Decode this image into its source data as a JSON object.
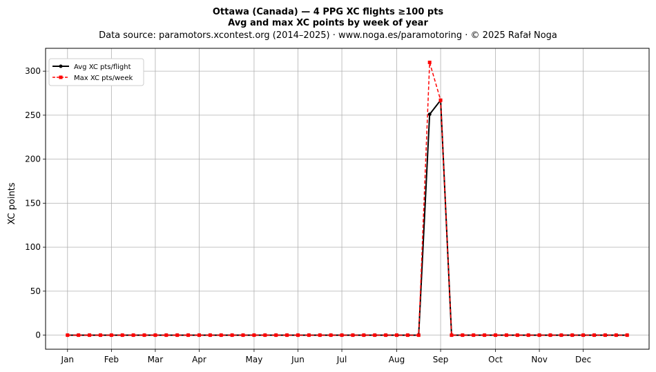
{
  "chart_data": {
    "type": "line",
    "title": "Ottawa (Canada)  —  4 PPG XC flights ≥100 pts",
    "subtitle": "Avg and max XC points by week of year",
    "source_note": "Data source: paramotors.xcontest.org (2014–2025)  ·  www.noga.es/paramotoring  ·  © 2025 Rafał Noga",
    "xlabel": "",
    "ylabel": "XC points",
    "xlim": [
      -1,
      54
    ],
    "ylim": [
      -16,
      326
    ],
    "yticks": [
      0,
      50,
      100,
      150,
      200,
      250,
      300
    ],
    "month_ticks": [
      {
        "label": "Jan",
        "week": 1
      },
      {
        "label": "Feb",
        "week": 5
      },
      {
        "label": "Mar",
        "week": 9
      },
      {
        "label": "Apr",
        "week": 13
      },
      {
        "label": "May",
        "week": 18
      },
      {
        "label": "Jun",
        "week": 22
      },
      {
        "label": "Jul",
        "week": 26
      },
      {
        "label": "Aug",
        "week": 31
      },
      {
        "label": "Sep",
        "week": 35
      },
      {
        "label": "Oct",
        "week": 40
      },
      {
        "label": "Nov",
        "week": 44
      },
      {
        "label": "Dec",
        "week": 48
      }
    ],
    "grid": true,
    "legend_position": "top-left",
    "x": [
      1,
      2,
      3,
      4,
      5,
      6,
      7,
      8,
      9,
      10,
      11,
      12,
      13,
      14,
      15,
      16,
      17,
      18,
      19,
      20,
      21,
      22,
      23,
      24,
      25,
      26,
      27,
      28,
      29,
      30,
      31,
      32,
      33,
      34,
      35,
      36,
      37,
      38,
      39,
      40,
      41,
      42,
      43,
      44,
      45,
      46,
      47,
      48,
      49,
      50,
      51,
      52
    ],
    "series": [
      {
        "name": "Avg XC pts/flight",
        "color": "#000000",
        "style": "solid",
        "marker": "circle",
        "values": [
          0,
          0,
          0,
          0,
          0,
          0,
          0,
          0,
          0,
          0,
          0,
          0,
          0,
          0,
          0,
          0,
          0,
          0,
          0,
          0,
          0,
          0,
          0,
          0,
          0,
          0,
          0,
          0,
          0,
          0,
          0,
          0,
          0,
          251,
          267,
          0,
          0,
          0,
          0,
          0,
          0,
          0,
          0,
          0,
          0,
          0,
          0,
          0,
          0,
          0,
          0,
          0
        ]
      },
      {
        "name": "Max XC pts/week",
        "color": "#ff0000",
        "style": "dashed",
        "marker": "square",
        "values": [
          0,
          0,
          0,
          0,
          0,
          0,
          0,
          0,
          0,
          0,
          0,
          0,
          0,
          0,
          0,
          0,
          0,
          0,
          0,
          0,
          0,
          0,
          0,
          0,
          0,
          0,
          0,
          0,
          0,
          0,
          0,
          0,
          0,
          310,
          267,
          0,
          0,
          0,
          0,
          0,
          0,
          0,
          0,
          0,
          0,
          0,
          0,
          0,
          0,
          0,
          0,
          0
        ]
      }
    ]
  }
}
